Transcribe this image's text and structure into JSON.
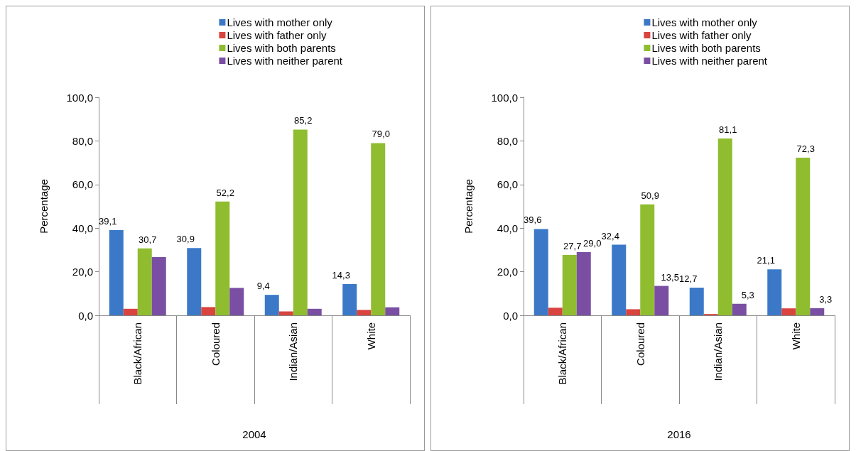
{
  "chart_data": [
    {
      "type": "bar",
      "xlabel": "2004",
      "ylabel": "Percentage",
      "categories": [
        "Black/African",
        "Coloured",
        "Indian/Asian",
        "White"
      ],
      "ylim": [
        0,
        100
      ],
      "yticks": [
        {
          "value": 0,
          "label": "0,0"
        },
        {
          "value": 20,
          "label": "20,0"
        },
        {
          "value": 40,
          "label": "40,0"
        },
        {
          "value": 60,
          "label": "60,0"
        },
        {
          "value": 80,
          "label": "80,0"
        },
        {
          "value": 100,
          "label": "100,0"
        }
      ],
      "grid": false,
      "legend": "top right",
      "series": [
        {
          "name": "Lives with mother only",
          "color": "#3b79c8",
          "values": [
            39.1,
            30.9,
            9.4,
            14.3
          ],
          "value_labels": [
            "39,1",
            "30,9",
            "9,4",
            "14,3"
          ]
        },
        {
          "name": "Lives with father only",
          "color": "#d9443f",
          "values": [
            3.0,
            3.8,
            1.8,
            2.5
          ],
          "value_labels": [
            null,
            null,
            null,
            null
          ]
        },
        {
          "name": "Lives with both parents",
          "color": "#8fbd2f",
          "values": [
            30.7,
            52.2,
            85.2,
            79.0
          ],
          "value_labels": [
            "30,7",
            "52,2",
            "85,2",
            "79,0"
          ]
        },
        {
          "name": "Lives with neither parent",
          "color": "#7a4fa3",
          "values": [
            26.7,
            12.6,
            3.0,
            3.7
          ],
          "value_labels": [
            null,
            null,
            null,
            null
          ]
        }
      ]
    },
    {
      "type": "bar",
      "xlabel": "2016",
      "ylabel": "Percentage",
      "categories": [
        "Black/African",
        "Coloured",
        "Indian/Asian",
        "White"
      ],
      "ylim": [
        0,
        100
      ],
      "yticks": [
        {
          "value": 0,
          "label": "0,0"
        },
        {
          "value": 20,
          "label": "20,0"
        },
        {
          "value": 40,
          "label": "40,0"
        },
        {
          "value": 60,
          "label": "60,0"
        },
        {
          "value": 80,
          "label": "80,0"
        },
        {
          "value": 100,
          "label": "100,0"
        }
      ],
      "grid": false,
      "legend": "top right",
      "series": [
        {
          "name": "Lives with mother only",
          "color": "#3b79c8",
          "values": [
            39.6,
            32.4,
            12.7,
            21.1
          ],
          "value_labels": [
            "39,6",
            "32,4",
            "12,7",
            "21,1"
          ]
        },
        {
          "name": "Lives with father only",
          "color": "#d9443f",
          "values": [
            3.5,
            2.8,
            0.6,
            3.2
          ],
          "value_labels": [
            null,
            null,
            null,
            null
          ]
        },
        {
          "name": "Lives with both parents",
          "color": "#8fbd2f",
          "values": [
            27.7,
            50.9,
            81.1,
            72.3
          ],
          "value_labels": [
            "27,7",
            "50,9",
            "81,1",
            "72,3"
          ]
        },
        {
          "name": "Lives with neither parent",
          "color": "#7a4fa3",
          "values": [
            29.0,
            13.5,
            5.3,
            3.3
          ],
          "value_labels": [
            "29,0",
            "13,5",
            "5,3",
            "3,3"
          ]
        }
      ]
    }
  ]
}
